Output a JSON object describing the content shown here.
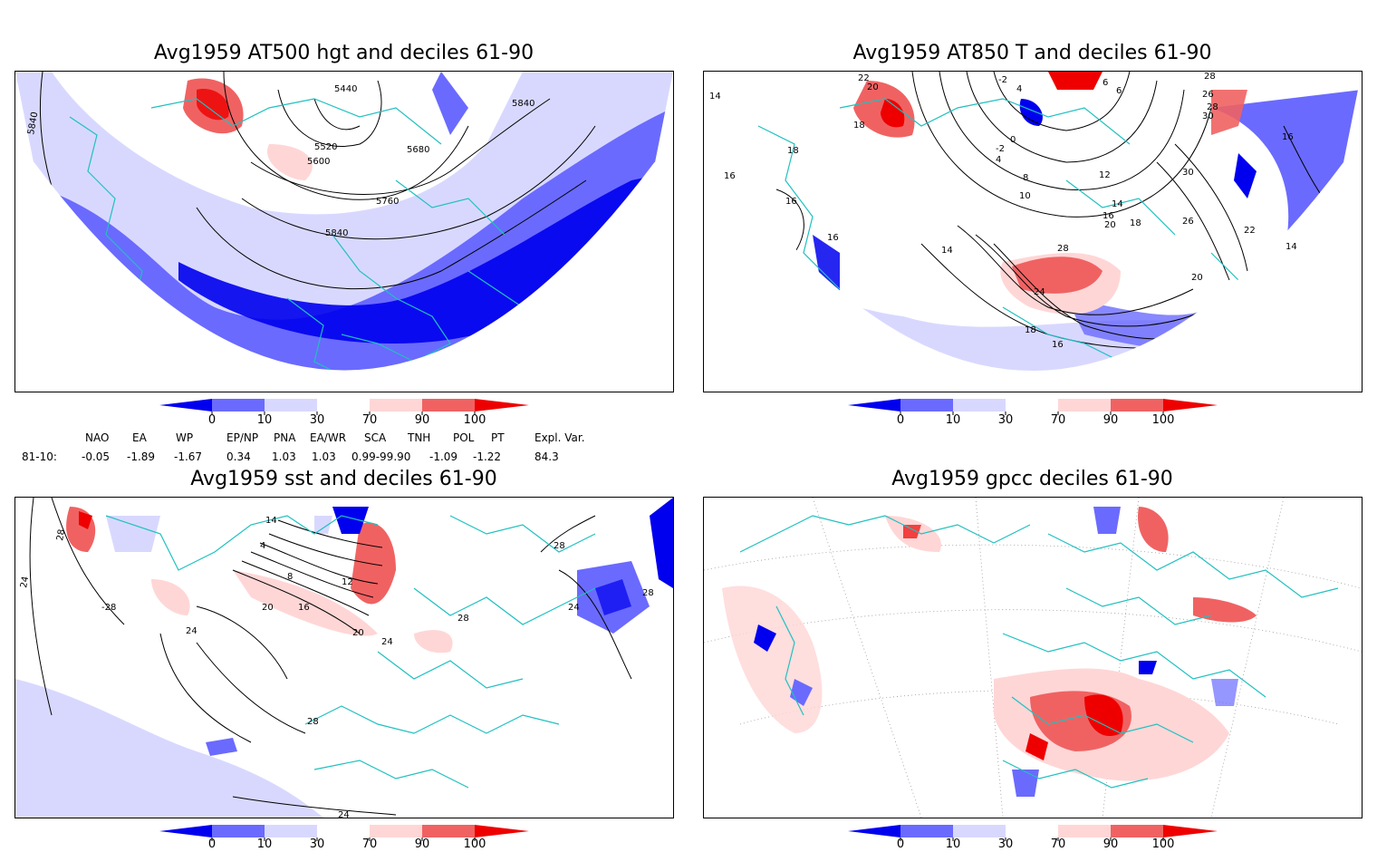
{
  "panels": [
    {
      "id": "p1",
      "title": "Avg1959 AT500 hgt and deciles 61-90",
      "contour_labels": [
        "5840",
        "5440",
        "5840",
        "5520",
        "5680",
        "5600",
        "5760",
        "5840"
      ]
    },
    {
      "id": "p2",
      "title": "Avg1959 AT850 T and deciles 61-90",
      "contour_labels": [
        "14",
        "22",
        "20",
        "-2",
        "4",
        "6",
        "6",
        "28",
        "26",
        "18",
        "0",
        "-2",
        "28",
        "30",
        "16",
        "18",
        "16",
        "4",
        "8",
        "12",
        "10",
        "30",
        "16",
        "14",
        "16",
        "18",
        "20",
        "26",
        "16",
        "22",
        "14",
        "14",
        "28",
        "20",
        "24",
        "18",
        "16"
      ]
    },
    {
      "id": "p3",
      "title": "Avg1959 sst and deciles 61-90",
      "contour_labels": [
        "28",
        "14",
        "4",
        "28",
        "8",
        "12",
        "28",
        "24",
        "-28",
        "20",
        "16",
        "20",
        "24",
        "28",
        "24",
        "24",
        "28",
        "24"
      ]
    },
    {
      "id": "p4",
      "title": "Avg1959 gpcc deciles 61-90",
      "contour_labels": []
    }
  ],
  "colorbar": {
    "labels": [
      "0",
      "10",
      "30",
      "70",
      "90",
      "100"
    ],
    "colors": [
      "#0000ee",
      "#6a6aff",
      "#d8d8ff",
      "#ffffff",
      "#ffd6d6",
      "#f06262",
      "#ee0000"
    ]
  },
  "indices": {
    "headers": [
      "NAO",
      "EA",
      "WP",
      "EP/NP",
      "PNA",
      "EA/WR",
      "SCA",
      "TNH",
      "POL",
      "PT",
      "Expl. Var."
    ],
    "row_label": "81-10:",
    "values": [
      "-0.05",
      "-1.89",
      "-1.67",
      "0.34",
      "1.03",
      "1.03",
      "0.99-99.90",
      "-1.09",
      "-1.22",
      "",
      "84.3"
    ]
  }
}
